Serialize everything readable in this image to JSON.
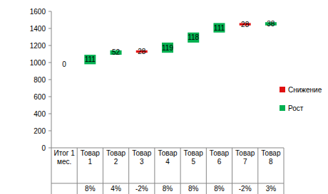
{
  "chart_data": {
    "type": "waterfall",
    "categories": [
      "Итог 1 мес.",
      "Товар 1",
      "Товар 2",
      "Товар 3",
      "Товар 4",
      "Товар 5",
      "Товар 6",
      "Товар 7",
      "Товар 8"
    ],
    "sublabels": [
      null,
      "8%",
      "4%",
      "-2%",
      "8%",
      "8%",
      "8%",
      "-2%",
      "3%"
    ],
    "start": 980,
    "series": [
      {
        "name": "Снижение",
        "color": "#e01010",
        "values": [
          null,
          null,
          null,
          28,
          null,
          null,
          null,
          28,
          null
        ]
      },
      {
        "name": "Рост",
        "color": "#00b050",
        "values": [
          0,
          111,
          52,
          null,
          119,
          118,
          111,
          null,
          38
        ]
      }
    ],
    "ylim": [
      0,
      1600
    ],
    "yticks": [
      0,
      200,
      400,
      600,
      800,
      1000,
      1200,
      1400,
      1600
    ],
    "grid": false,
    "legend": "right",
    "data_labels": true
  }
}
